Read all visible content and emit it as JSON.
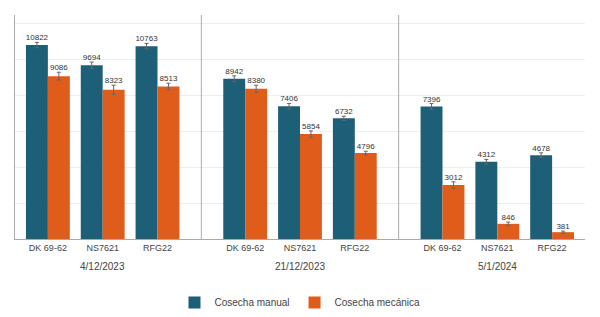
{
  "chart_data": {
    "type": "bar",
    "categories": [
      [
        "4/12/2023",
        "DK 69-62"
      ],
      [
        "4/12/2023",
        "NS7621"
      ],
      [
        "4/12/2023",
        "RFG22"
      ],
      [
        "21/12/2023",
        "DK 69-62"
      ],
      [
        "21/12/2023",
        "NS7621"
      ],
      [
        "21/12/2023",
        "RFG22"
      ],
      [
        "5/1/2024",
        "DK 69-62"
      ],
      [
        "5/1/2024",
        "NS7621"
      ],
      [
        "5/1/2024",
        "RFG22"
      ]
    ],
    "series": [
      {
        "name": "Cosecha manual",
        "color": "#1e5f78",
        "values": [
          10822,
          9694,
          10763,
          8942,
          7406,
          6732,
          7396,
          4312,
          4678
        ],
        "errors": [
          150,
          180,
          150,
          160,
          160,
          120,
          160,
          130,
          130
        ]
      },
      {
        "name": "Cosecha mecánica",
        "color": "#e05c1a",
        "values": [
          9086,
          8323,
          8513,
          8380,
          5854,
          4796,
          3012,
          846,
          381
        ],
        "errors": [
          220,
          260,
          180,
          200,
          180,
          100,
          180,
          100,
          60
        ]
      }
    ],
    "ylim": [
      0,
      12500
    ],
    "yticks": [
      2000,
      4000,
      6000,
      8000,
      10000,
      12000
    ],
    "grid": true,
    "legend": "bottom",
    "data_labels": true,
    "tick_labels": "x"
  }
}
